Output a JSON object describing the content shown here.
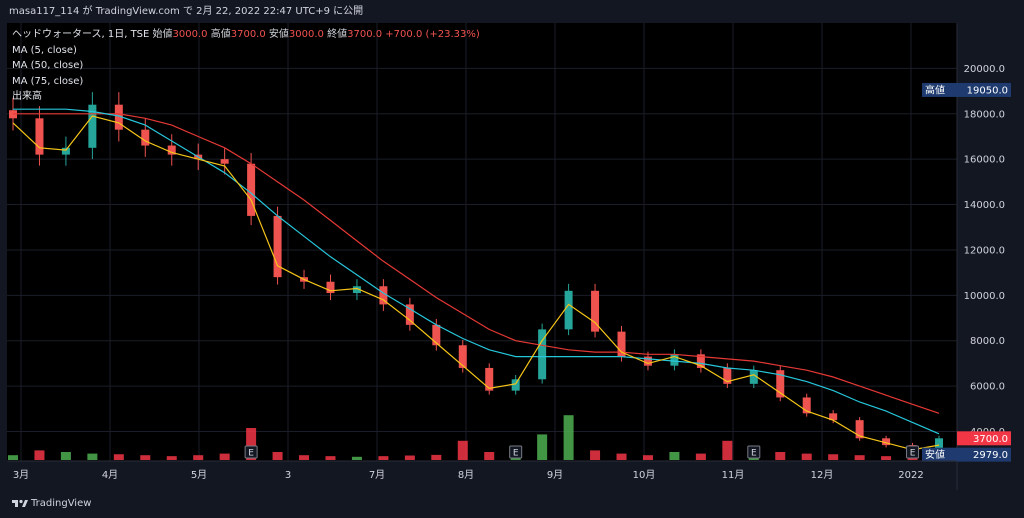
{
  "header": {
    "text": "masa117_114 が TradingView.com で 2月 22, 2022 22:47 UTC+9 に公開"
  },
  "legend": {
    "symbol": "ヘッドウォータース, 1日, TSE",
    "open_label": "始値",
    "open_value": "3000.0",
    "high_label": "高値",
    "high_value": "3700.0",
    "low_label": "安値",
    "low_value": "3000.0",
    "close_label": "終値",
    "close_value": "3700.0",
    "change": "+700.0 (+23.33%)",
    "ma5": "MA (5, close)",
    "ma50": "MA (50, close)",
    "ma75": "MA (75, close)",
    "volume": "出来高"
  },
  "footer": {
    "brand": "TradingView"
  },
  "colors": {
    "up": "#26a69a",
    "down": "#ef5350",
    "vol_up": "#4caf50",
    "vol_down": "#f23645",
    "ma5": "#f5c518",
    "ma50": "#26c6da",
    "ma75": "#e53935",
    "badge_high": "#1e3a6e",
    "badge_last": "#f23645"
  },
  "chart_data": {
    "type": "line",
    "ylim": [
      2700,
      22000
    ],
    "y_ticks": [
      "20000.0",
      "18000.0",
      "16000.0",
      "14000.0",
      "12000.0",
      "10000.0",
      "8000.0",
      "6000.0",
      "4000.0"
    ],
    "x_ticks": [
      "3月",
      "4月",
      "5月",
      "3",
      "7月",
      "8月",
      "9月",
      "10月",
      "11月",
      "12月",
      "2022"
    ],
    "price_close": [
      17800,
      16200,
      16500,
      18400,
      17300,
      16600,
      16200,
      16000,
      15800,
      13500,
      10800,
      10600,
      10100,
      10400,
      9600,
      8700,
      7800,
      6800,
      5800,
      6300,
      8500,
      10200,
      8400,
      7300,
      6900,
      7400,
      6800,
      6100,
      6700,
      5500,
      4800,
      4500,
      3700,
      3400,
      3000,
      3700
    ],
    "ma5": [
      17600,
      16500,
      16400,
      17900,
      17600,
      16800,
      16300,
      16000,
      15700,
      14200,
      11300,
      10700,
      10200,
      10300,
      9800,
      8900,
      7900,
      6900,
      5900,
      6100,
      8000,
      9600,
      8800,
      7500,
      7000,
      7300,
      6900,
      6200,
      6500,
      5700,
      4900,
      4500,
      3800,
      3500,
      3200,
      3400
    ],
    "ma50": [
      18200,
      18200,
      18200,
      18100,
      17900,
      17500,
      16800,
      16100,
      15400,
      14500,
      13500,
      12600,
      11700,
      10900,
      10100,
      9400,
      8700,
      8100,
      7600,
      7300,
      7300,
      7300,
      7300,
      7300,
      7200,
      7100,
      7000,
      6800,
      6700,
      6500,
      6200,
      5800,
      5300,
      4900,
      4400,
      3900
    ],
    "ma75": [
      18000,
      18000,
      18000,
      18000,
      18000,
      17800,
      17500,
      17000,
      16500,
      15800,
      15000,
      14200,
      13300,
      12400,
      11500,
      10700,
      9900,
      9200,
      8500,
      8000,
      7800,
      7600,
      7500,
      7500,
      7400,
      7400,
      7300,
      7200,
      7100,
      6900,
      6700,
      6400,
      6000,
      5600,
      5200,
      4800
    ],
    "volume_relative": [
      0.15,
      0.3,
      0.25,
      0.2,
      0.18,
      0.15,
      0.12,
      0.15,
      0.2,
      1.0,
      0.25,
      0.15,
      0.12,
      0.1,
      0.12,
      0.14,
      0.16,
      0.6,
      0.25,
      0.3,
      0.8,
      1.4,
      0.3,
      0.2,
      0.15,
      0.25,
      0.2,
      0.6,
      0.3,
      0.25,
      0.2,
      0.18,
      0.15,
      0.12,
      0.1,
      0.3
    ],
    "earnings_markers": [
      "E",
      "E",
      "E",
      "E"
    ],
    "price_labels": {
      "high_label": "高値",
      "high_value": "19050.0",
      "last_value": "3700.0",
      "low_label": "安値",
      "low_value": "2979.0"
    }
  }
}
